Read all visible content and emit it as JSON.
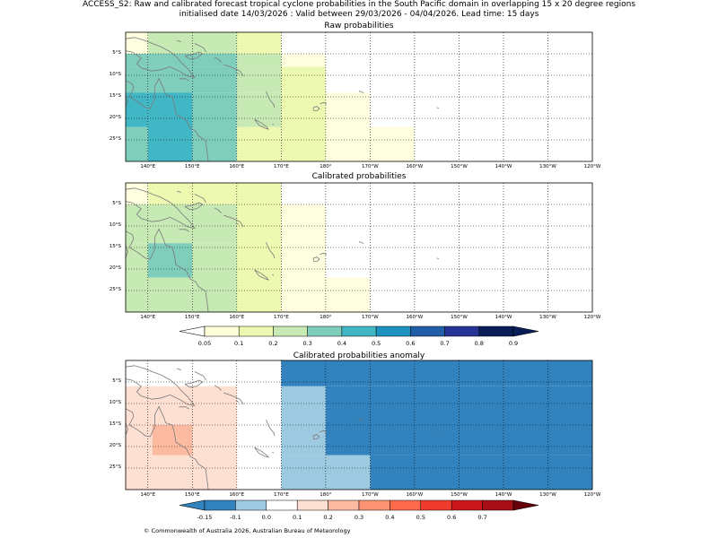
{
  "header": {
    "line1": "ACCESS_S2: Raw and calibrated forecast tropical cyclone probabilities in the South Pacific domain in overlapping 15 x 20 degree regions",
    "line2": "initialised date 14/03/2026 :  Valid between 29/03/2026 - 04/04/2026. Lead time: 15 days"
  },
  "axes": {
    "lat_labels": [
      "5°S",
      "10°S",
      "15°S",
      "20°S",
      "25°S"
    ],
    "lon_labels": [
      "140°E",
      "150°E",
      "160°E",
      "170°E",
      "180°",
      "170°W",
      "160°W",
      "150°W",
      "140°W",
      "130°W",
      "120°W"
    ]
  },
  "panels": [
    {
      "title": "Raw probabilities",
      "cells": [
        {
          "lon": [
            135,
            140
          ],
          "lat": [
            0,
            -5
          ],
          "color": "#ffffe0"
        },
        {
          "lon": [
            140,
            160
          ],
          "lat": [
            0,
            -5
          ],
          "color": "#c7e9b4"
        },
        {
          "lon": [
            160,
            170
          ],
          "lat": [
            0,
            -5
          ],
          "color": "#edf8b1"
        },
        {
          "lon": [
            135,
            140
          ],
          "lat": [
            -5,
            -8
          ],
          "color": "#7fcdbb"
        },
        {
          "lon": [
            140,
            160
          ],
          "lat": [
            -5,
            -8
          ],
          "color": "#7fcdbb"
        },
        {
          "lon": [
            160,
            170
          ],
          "lat": [
            -5,
            -8
          ],
          "color": "#c7e9b4"
        },
        {
          "lon": [
            170,
            180
          ],
          "lat": [
            -5,
            -8
          ],
          "color": "#ffffe0"
        },
        {
          "lon": [
            135,
            160
          ],
          "lat": [
            -8,
            -14
          ],
          "color": "#7fcdbb"
        },
        {
          "lon": [
            160,
            170
          ],
          "lat": [
            -8,
            -14
          ],
          "color": "#c7e9b4"
        },
        {
          "lon": [
            170,
            180
          ],
          "lat": [
            -8,
            -14
          ],
          "color": "#edf8b1"
        },
        {
          "lon": [
            135,
            140
          ],
          "lat": [
            -14,
            -22
          ],
          "color": "#41b6c4"
        },
        {
          "lon": [
            140,
            150
          ],
          "lat": [
            -14,
            -30
          ],
          "color": "#41b6c4"
        },
        {
          "lon": [
            150,
            160
          ],
          "lat": [
            -14,
            -30
          ],
          "color": "#7fcdbb"
        },
        {
          "lon": [
            160,
            170
          ],
          "lat": [
            -14,
            -22
          ],
          "color": "#c7e9b4"
        },
        {
          "lon": [
            170,
            180
          ],
          "lat": [
            -14,
            -30
          ],
          "color": "#edf8b1"
        },
        {
          "lon": [
            180,
            190
          ],
          "lat": [
            -14,
            -30
          ],
          "color": "#ffffe0"
        },
        {
          "lon": [
            135,
            140
          ],
          "lat": [
            -22,
            -30
          ],
          "color": "#7fcdbb"
        },
        {
          "lon": [
            160,
            170
          ],
          "lat": [
            -22,
            -30
          ],
          "color": "#edf8b1"
        },
        {
          "lon": [
            190,
            200
          ],
          "lat": [
            -22,
            -30
          ],
          "color": "#ffffe0"
        }
      ]
    },
    {
      "title": "Calibrated probabilities",
      "cells": [
        {
          "lon": [
            135,
            140
          ],
          "lat": [
            0,
            -5
          ],
          "color": "#ffffe0"
        },
        {
          "lon": [
            140,
            170
          ],
          "lat": [
            0,
            -5
          ],
          "color": "#edf8b1"
        },
        {
          "lon": [
            135,
            160
          ],
          "lat": [
            -5,
            -14
          ],
          "color": "#c7e9b4"
        },
        {
          "lon": [
            160,
            170
          ],
          "lat": [
            -5,
            -14
          ],
          "color": "#edf8b1"
        },
        {
          "lon": [
            170,
            180
          ],
          "lat": [
            -5,
            -14
          ],
          "color": "#ffffe0"
        },
        {
          "lon": [
            135,
            140
          ],
          "lat": [
            -14,
            -30
          ],
          "color": "#c7e9b4"
        },
        {
          "lon": [
            140,
            150
          ],
          "lat": [
            -14,
            -22
          ],
          "color": "#7fcdbb"
        },
        {
          "lon": [
            140,
            150
          ],
          "lat": [
            -22,
            -30
          ],
          "color": "#c7e9b4"
        },
        {
          "lon": [
            150,
            160
          ],
          "lat": [
            -14,
            -30
          ],
          "color": "#c7e9b4"
        },
        {
          "lon": [
            160,
            170
          ],
          "lat": [
            -14,
            -30
          ],
          "color": "#edf8b1"
        },
        {
          "lon": [
            170,
            180
          ],
          "lat": [
            -14,
            -30
          ],
          "color": "#ffffe0"
        },
        {
          "lon": [
            180,
            190
          ],
          "lat": [
            -22,
            -30
          ],
          "color": "#ffffe0"
        }
      ]
    },
    {
      "title": "Calibrated probabilities anomaly",
      "cells": [
        {
          "lon": [
            135,
            160
          ],
          "lat": [
            -6,
            -30
          ],
          "color": "#fee0d2"
        },
        {
          "lon": [
            141,
            150
          ],
          "lat": [
            -15,
            -22
          ],
          "color": "#fcbba1"
        },
        {
          "lon": [
            170,
            240
          ],
          "lat": [
            0,
            -6
          ],
          "color": "#3182bd"
        },
        {
          "lon": [
            170,
            180
          ],
          "lat": [
            -6,
            -22
          ],
          "color": "#9ecae1"
        },
        {
          "lon": [
            180,
            240
          ],
          "lat": [
            -6,
            -22
          ],
          "color": "#3182bd"
        },
        {
          "lon": [
            170,
            190
          ],
          "lat": [
            -22,
            -30
          ],
          "color": "#9ecae1"
        },
        {
          "lon": [
            190,
            240
          ],
          "lat": [
            -22,
            -30
          ],
          "color": "#3182bd"
        }
      ]
    }
  ],
  "colorbars": [
    {
      "labels": [
        "0.05",
        "0.1",
        "0.2",
        "0.3",
        "0.4",
        "0.5",
        "0.6",
        "0.7",
        "0.8",
        "0.9"
      ],
      "under": "#ffffff",
      "over": "#081d58",
      "colors": [
        "#ffffd9",
        "#edf8b1",
        "#c7e9b4",
        "#7fcdbb",
        "#41b6c4",
        "#1d91c0",
        "#225ea8",
        "#253494",
        "#081d58"
      ]
    },
    {
      "labels": [
        "-0.15",
        "-0.1",
        "0.0",
        "0.1",
        "0.2",
        "0.3",
        "0.4",
        "0.5",
        "0.6",
        "0.7"
      ],
      "under": "#3182bd",
      "over": "#67000d",
      "colors": [
        "#3182bd",
        "#9ecae1",
        "#ffffff",
        "#fee0d2",
        "#fcbba1",
        "#fc9272",
        "#fb6a4a",
        "#ef3b2c",
        "#cb181d",
        "#a50f15"
      ]
    }
  ],
  "footer": {
    "copyright": "© Commonwealth of Australia 2026, Australian Bureau of Meteorology"
  }
}
